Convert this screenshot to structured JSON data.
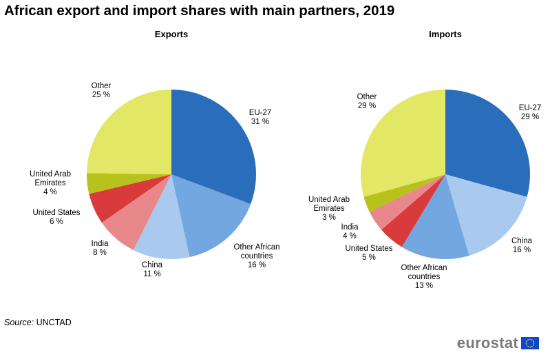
{
  "title": "African export and import shares with main partners, 2019",
  "source": {
    "label": "Source:",
    "value": "UNCTAD"
  },
  "brand": {
    "name": "eurostat"
  },
  "colors": {
    "eu27": "#2a6ebb",
    "other_african": "#72a7e0",
    "china": "#a9c9ee",
    "india": "#e8888a",
    "united_states": "#d93a3c",
    "uae": "#b8c21c",
    "other": "#e2e766",
    "flag_blue": "#0e47cb",
    "flag_star": "#ffd617"
  },
  "chart_data": [
    {
      "type": "pie",
      "title": "Exports",
      "slices": [
        {
          "label": [
            "EU-27"
          ],
          "value": 31,
          "value_label": "31 %",
          "color": "#2a6ebb"
        },
        {
          "label": [
            "Other African",
            "countries"
          ],
          "value": 16,
          "value_label": "16 %",
          "color": "#72a7e0"
        },
        {
          "label": [
            "China"
          ],
          "value": 11,
          "value_label": "11 %",
          "color": "#a9c9ee"
        },
        {
          "label": [
            "India"
          ],
          "value": 8,
          "value_label": "8 %",
          "color": "#e8888a"
        },
        {
          "label": [
            "United States"
          ],
          "value": 6,
          "value_label": "6 %",
          "color": "#d93a3c"
        },
        {
          "label": [
            "United Arab",
            "Emirates"
          ],
          "value": 4,
          "value_label": "4 %",
          "color": "#b8c21c"
        },
        {
          "label": [
            "Other"
          ],
          "value": 25,
          "value_label": "25 %",
          "color": "#e2e766"
        }
      ]
    },
    {
      "type": "pie",
      "title": "Imports",
      "slices": [
        {
          "label": [
            "EU-27"
          ],
          "value": 29,
          "value_label": "29 %",
          "color": "#2a6ebb"
        },
        {
          "label": [
            "China"
          ],
          "value": 16,
          "value_label": "16 %",
          "color": "#a9c9ee"
        },
        {
          "label": [
            "Other African",
            "countries"
          ],
          "value": 13,
          "value_label": "13 %",
          "color": "#72a7e0"
        },
        {
          "label": [
            "United States"
          ],
          "value": 5,
          "value_label": "5 %",
          "color": "#d93a3c"
        },
        {
          "label": [
            "India"
          ],
          "value": 4,
          "value_label": "4 %",
          "color": "#e8888a"
        },
        {
          "label": [
            "United Arab",
            "Emirates"
          ],
          "value": 3,
          "value_label": "3 %",
          "color": "#b8c21c"
        },
        {
          "label": [
            "Other"
          ],
          "value": 29,
          "value_label": "29 %",
          "color": "#e2e766"
        }
      ]
    }
  ]
}
